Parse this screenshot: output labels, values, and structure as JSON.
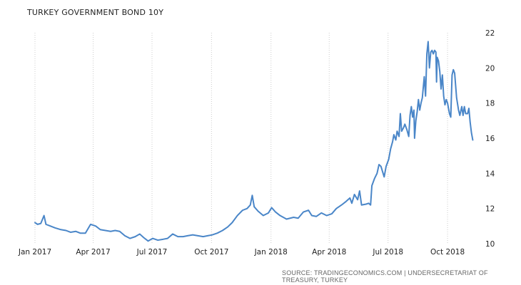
{
  "title": "TURKEY GOVERNMENT BOND 10Y",
  "source": "SOURCE: TRADINGECONOMICS.COM | UNDERSECRETARIAT OF TREASURY, TURKEY",
  "colors": {
    "line": "#4a86c8",
    "grid": "#cccccc"
  },
  "chart_data": {
    "type": "line",
    "title": "TURKEY GOVERNMENT BOND 10Y",
    "xlabel": "",
    "ylabel": "",
    "ylim": [
      10,
      22
    ],
    "xlim": [
      "2017-01-01",
      "2018-11-24"
    ],
    "grid": "vertical",
    "y_axis_side": "right",
    "x_ticks": [
      {
        "date": "2017-01-01",
        "label": "Jan 2017"
      },
      {
        "date": "2017-04-01",
        "label": "Apr 2017"
      },
      {
        "date": "2017-07-01",
        "label": "Jul 2017"
      },
      {
        "date": "2017-10-01",
        "label": "Oct 2017"
      },
      {
        "date": "2018-01-01",
        "label": "Jan 2018"
      },
      {
        "date": "2018-04-01",
        "label": "Apr 2018"
      },
      {
        "date": "2018-07-01",
        "label": "Jul 2018"
      },
      {
        "date": "2018-10-01",
        "label": "Oct 2018"
      }
    ],
    "y_ticks": [
      10,
      12,
      14,
      16,
      18,
      20,
      22
    ],
    "series": [
      {
        "points": [
          [
            "2017-01-01",
            11.2
          ],
          [
            "2017-01-05",
            11.1
          ],
          [
            "2017-01-10",
            11.15
          ],
          [
            "2017-01-15",
            11.6
          ],
          [
            "2017-01-18",
            11.1
          ],
          [
            "2017-01-25",
            11.0
          ],
          [
            "2017-02-01",
            10.9
          ],
          [
            "2017-02-10",
            10.8
          ],
          [
            "2017-02-18",
            10.75
          ],
          [
            "2017-02-25",
            10.65
          ],
          [
            "2017-03-05",
            10.7
          ],
          [
            "2017-03-12",
            10.6
          ],
          [
            "2017-03-20",
            10.6
          ],
          [
            "2017-03-28",
            11.1
          ],
          [
            "2017-04-05",
            11.0
          ],
          [
            "2017-04-12",
            10.8
          ],
          [
            "2017-04-20",
            10.75
          ],
          [
            "2017-04-28",
            10.7
          ],
          [
            "2017-05-05",
            10.75
          ],
          [
            "2017-05-12",
            10.7
          ],
          [
            "2017-05-20",
            10.45
          ],
          [
            "2017-05-28",
            10.3
          ],
          [
            "2017-06-05",
            10.4
          ],
          [
            "2017-06-12",
            10.55
          ],
          [
            "2017-06-18",
            10.35
          ],
          [
            "2017-06-25",
            10.15
          ],
          [
            "2017-07-02",
            10.3
          ],
          [
            "2017-07-10",
            10.2
          ],
          [
            "2017-07-18",
            10.25
          ],
          [
            "2017-07-25",
            10.3
          ],
          [
            "2017-08-02",
            10.55
          ],
          [
            "2017-08-10",
            10.4
          ],
          [
            "2017-08-18",
            10.4
          ],
          [
            "2017-08-25",
            10.45
          ],
          [
            "2017-09-02",
            10.5
          ],
          [
            "2017-09-10",
            10.45
          ],
          [
            "2017-09-18",
            10.4
          ],
          [
            "2017-09-25",
            10.45
          ],
          [
            "2017-10-02",
            10.5
          ],
          [
            "2017-10-10",
            10.6
          ],
          [
            "2017-10-18",
            10.75
          ],
          [
            "2017-10-26",
            10.95
          ],
          [
            "2017-11-02",
            11.2
          ],
          [
            "2017-11-10",
            11.6
          ],
          [
            "2017-11-18",
            11.9
          ],
          [
            "2017-11-25",
            12.0
          ],
          [
            "2017-11-30",
            12.2
          ],
          [
            "2017-12-03",
            12.75
          ],
          [
            "2017-12-06",
            12.1
          ],
          [
            "2017-12-12",
            11.85
          ],
          [
            "2017-12-20",
            11.6
          ],
          [
            "2017-12-28",
            11.75
          ],
          [
            "2018-01-02",
            12.05
          ],
          [
            "2018-01-08",
            11.8
          ],
          [
            "2018-01-15",
            11.6
          ],
          [
            "2018-01-25",
            11.4
          ],
          [
            "2018-02-05",
            11.5
          ],
          [
            "2018-02-12",
            11.45
          ],
          [
            "2018-02-20",
            11.8
          ],
          [
            "2018-02-28",
            11.9
          ],
          [
            "2018-03-05",
            11.6
          ],
          [
            "2018-03-12",
            11.55
          ],
          [
            "2018-03-20",
            11.75
          ],
          [
            "2018-03-28",
            11.6
          ],
          [
            "2018-04-05",
            11.7
          ],
          [
            "2018-04-12",
            12.0
          ],
          [
            "2018-04-20",
            12.2
          ],
          [
            "2018-04-27",
            12.4
          ],
          [
            "2018-05-03",
            12.6
          ],
          [
            "2018-05-06",
            12.3
          ],
          [
            "2018-05-10",
            12.8
          ],
          [
            "2018-05-15",
            12.5
          ],
          [
            "2018-05-18",
            13.0
          ],
          [
            "2018-05-21",
            12.2
          ],
          [
            "2018-05-28",
            12.25
          ],
          [
            "2018-06-01",
            12.3
          ],
          [
            "2018-06-04",
            12.2
          ],
          [
            "2018-06-06",
            13.3
          ],
          [
            "2018-06-10",
            13.7
          ],
          [
            "2018-06-14",
            14.0
          ],
          [
            "2018-06-17",
            14.5
          ],
          [
            "2018-06-20",
            14.4
          ],
          [
            "2018-06-25",
            13.8
          ],
          [
            "2018-06-28",
            14.4
          ],
          [
            "2018-07-02",
            14.8
          ],
          [
            "2018-07-05",
            15.4
          ],
          [
            "2018-07-08",
            15.8
          ],
          [
            "2018-07-10",
            16.2
          ],
          [
            "2018-07-13",
            15.9
          ],
          [
            "2018-07-15",
            16.4
          ],
          [
            "2018-07-18",
            16.1
          ],
          [
            "2018-07-20",
            17.4
          ],
          [
            "2018-07-22",
            16.4
          ],
          [
            "2018-07-25",
            16.6
          ],
          [
            "2018-07-27",
            16.8
          ],
          [
            "2018-07-30",
            16.5
          ],
          [
            "2018-08-02",
            16.1
          ],
          [
            "2018-08-04",
            17.3
          ],
          [
            "2018-08-06",
            17.8
          ],
          [
            "2018-08-08",
            17.2
          ],
          [
            "2018-08-10",
            17.6
          ],
          [
            "2018-08-11",
            16.0
          ],
          [
            "2018-08-13",
            17.0
          ],
          [
            "2018-08-15",
            17.5
          ],
          [
            "2018-08-17",
            18.2
          ],
          [
            "2018-08-19",
            17.6
          ],
          [
            "2018-08-21",
            18.0
          ],
          [
            "2018-08-23",
            18.3
          ],
          [
            "2018-08-26",
            19.5
          ],
          [
            "2018-08-28",
            18.4
          ],
          [
            "2018-08-30",
            20.8
          ],
          [
            "2018-09-01",
            21.5
          ],
          [
            "2018-09-03",
            20.0
          ],
          [
            "2018-09-05",
            20.9
          ],
          [
            "2018-09-07",
            21.0
          ],
          [
            "2018-09-09",
            20.8
          ],
          [
            "2018-09-11",
            21.0
          ],
          [
            "2018-09-13",
            20.9
          ],
          [
            "2018-09-14",
            19.2
          ],
          [
            "2018-09-15",
            20.6
          ],
          [
            "2018-09-17",
            20.4
          ],
          [
            "2018-09-19",
            19.8
          ],
          [
            "2018-09-21",
            18.8
          ],
          [
            "2018-09-23",
            19.6
          ],
          [
            "2018-09-25",
            18.4
          ],
          [
            "2018-09-27",
            17.9
          ],
          [
            "2018-09-29",
            18.2
          ],
          [
            "2018-10-01",
            18.0
          ],
          [
            "2018-10-04",
            17.4
          ],
          [
            "2018-10-06",
            17.2
          ],
          [
            "2018-10-08",
            19.6
          ],
          [
            "2018-10-10",
            19.9
          ],
          [
            "2018-10-12",
            19.7
          ],
          [
            "2018-10-15",
            18.3
          ],
          [
            "2018-10-18",
            17.6
          ],
          [
            "2018-10-20",
            17.3
          ],
          [
            "2018-10-23",
            17.8
          ],
          [
            "2018-10-25",
            17.3
          ],
          [
            "2018-10-27",
            17.8
          ],
          [
            "2018-10-29",
            17.4
          ],
          [
            "2018-11-01",
            17.4
          ],
          [
            "2018-11-03",
            17.7
          ],
          [
            "2018-11-05",
            16.9
          ],
          [
            "2018-11-07",
            16.3
          ],
          [
            "2018-11-09",
            15.9
          ]
        ]
      }
    ]
  }
}
